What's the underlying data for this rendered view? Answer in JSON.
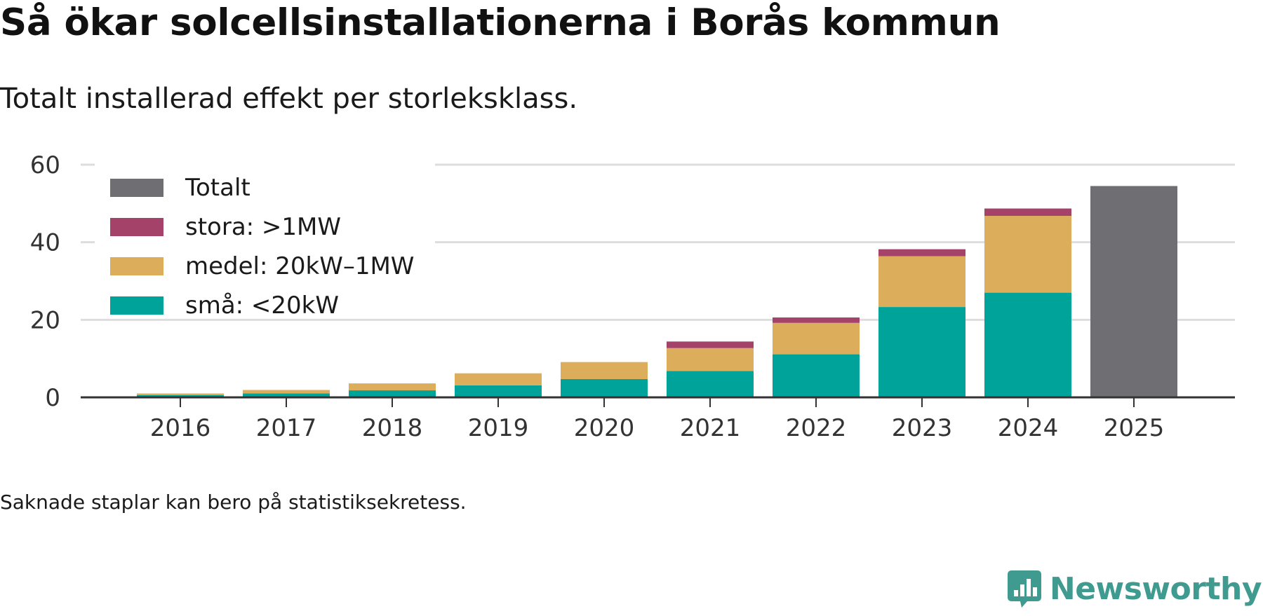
{
  "title": "Så ökar solcellsinstallationerna i Borås kommun",
  "subtitle": "Totalt installerad effekt per storleksklass.",
  "footnote": "Saknade staplar kan bero på statistiksekretess.",
  "brand": {
    "name": "Newsworthy"
  },
  "colors": {
    "sma": "#00a39a",
    "medel": "#dcae5c",
    "stora": "#a5426a",
    "totalt": "#6f6e73",
    "grid": "#dddddd",
    "axis": "#333333"
  },
  "chart_data": {
    "type": "bar",
    "stacked": true,
    "categories": [
      "2016",
      "2017",
      "2018",
      "2019",
      "2020",
      "2021",
      "2022",
      "2023",
      "2024",
      "2025"
    ],
    "series": [
      {
        "name": "små: <20kW",
        "key": "sma",
        "values": [
          0.6,
          1.0,
          1.8,
          3.1,
          4.7,
          6.8,
          11.1,
          23.3,
          27.0,
          null
        ]
      },
      {
        "name": "medel: 20kW–1MW",
        "key": "medel",
        "values": [
          0.4,
          0.9,
          1.8,
          3.1,
          4.4,
          5.9,
          8.1,
          13.1,
          19.8,
          null
        ]
      },
      {
        "name": "stora: >1MW",
        "key": "stora",
        "values": [
          0.0,
          0.0,
          0.0,
          0.0,
          0.0,
          1.7,
          1.4,
          1.8,
          1.9,
          null
        ]
      },
      {
        "name": "Totalt",
        "key": "totalt",
        "values": [
          null,
          null,
          null,
          null,
          null,
          null,
          null,
          null,
          null,
          54.5
        ]
      }
    ],
    "legend": [
      "Totalt",
      "stora: >1MW",
      "medel: 20kW–1MW",
      "små: <20kW"
    ],
    "legend_position": "top-left",
    "yticks": [
      0,
      20,
      40,
      60
    ],
    "ylim": [
      0,
      60
    ],
    "xlabel": "",
    "ylabel": "",
    "grid": true
  }
}
